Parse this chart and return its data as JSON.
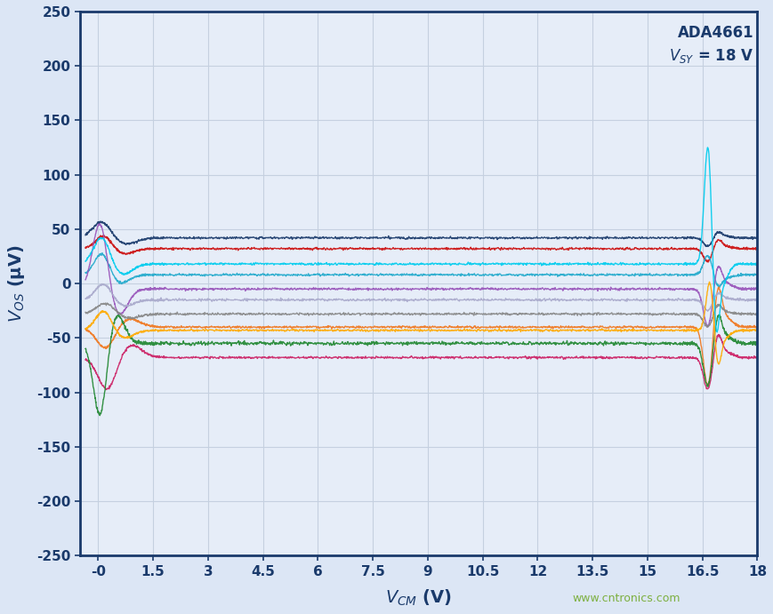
{
  "watermark": "www.cntronics.com",
  "xmin": -0.5,
  "xmax": 18.0,
  "ymin": -250,
  "ymax": 250,
  "xticks": [
    0,
    1.5,
    3,
    4.5,
    6,
    7.5,
    9,
    10.5,
    12,
    13.5,
    15,
    16.5,
    18
  ],
  "xtick_labels": [
    "-0",
    "1.5",
    "3",
    "4.5",
    "6",
    "7.5",
    "9",
    "10.5",
    "12",
    "13.5",
    "15",
    "16.5",
    "18"
  ],
  "yticks": [
    -250,
    -200,
    -150,
    -100,
    -50,
    0,
    50,
    100,
    150,
    200,
    250
  ],
  "grid_color": "#c5d0e0",
  "background_color": "#e6edf8",
  "border_color": "#1a3a6b",
  "title_color": "#1a3a6b",
  "axis_label_color": "#1a3a6b",
  "watermark_color": "#7db040",
  "line_specs": [
    {
      "color": "#1a3a6b",
      "flat": 42,
      "noise": 0.5,
      "lspike": 15,
      "lcenter": 0.1,
      "lwidth": 0.25,
      "rspike1": -8,
      "rspike2": 5,
      "rcenter": 16.65,
      "rwidth": 0.12
    },
    {
      "color": "#cc1111",
      "flat": 32,
      "noise": 0.5,
      "lspike": 12,
      "lcenter": 0.15,
      "lwidth": 0.22,
      "rspike1": -12,
      "rspike2": 8,
      "rcenter": 16.65,
      "rwidth": 0.12
    },
    {
      "color": "#22aacc",
      "flat": 8,
      "noise": 0.5,
      "lspike": 20,
      "lcenter": 0.1,
      "lwidth": 0.2,
      "rspike1": 18,
      "rspike2": -10,
      "rcenter": 16.65,
      "rwidth": 0.12
    },
    {
      "color": "#f07820",
      "flat": -40,
      "noise": 0.5,
      "lspike": -20,
      "lcenter": 0.2,
      "lwidth": 0.25,
      "rspike1": -55,
      "rspike2": 35,
      "rcenter": 16.65,
      "rwidth": 0.12
    },
    {
      "color": "#9955bb",
      "flat": -5,
      "noise": 0.5,
      "lspike": 62,
      "lcenter": 0.05,
      "lwidth": 0.2,
      "rspike1": -35,
      "rspike2": 20,
      "rcenter": 16.65,
      "rwidth": 0.12
    },
    {
      "color": "#aaaacc",
      "flat": -15,
      "noise": 0.5,
      "lspike": 15,
      "lcenter": 0.15,
      "lwidth": 0.22,
      "rspike1": -10,
      "rspike2": 6,
      "rcenter": 16.65,
      "rwidth": 0.12
    },
    {
      "color": "#888888",
      "flat": -28,
      "noise": 0.5,
      "lspike": 10,
      "lcenter": 0.2,
      "lwidth": 0.25,
      "rspike1": -12,
      "rspike2": 8,
      "rcenter": 16.65,
      "rwidth": 0.12
    },
    {
      "color": "#cc2266",
      "flat": -68,
      "noise": 0.5,
      "lspike": -30,
      "lcenter": 0.25,
      "lwidth": 0.25,
      "rspike1": -30,
      "rspike2": 20,
      "rcenter": 16.65,
      "rwidth": 0.12
    },
    {
      "color": "#228833",
      "flat": -55,
      "noise": 0.8,
      "lspike": -68,
      "lcenter": 0.05,
      "lwidth": 0.18,
      "rspike1": -40,
      "rspike2": 25,
      "rcenter": 16.65,
      "rwidth": 0.12
    },
    {
      "color": "#00ccee",
      "flat": 18,
      "noise": 0.5,
      "lspike": 25,
      "lcenter": 0.1,
      "lwidth": 0.22,
      "rspike1": 110,
      "rspike2": -60,
      "rcenter": 16.65,
      "rwidth": 0.1
    },
    {
      "color": "#ffaa00",
      "flat": -43,
      "noise": 0.5,
      "lspike": 18,
      "lcenter": 0.15,
      "lwidth": 0.22,
      "rspike1": 45,
      "rspike2": -30,
      "rcenter": 16.7,
      "rwidth": 0.1
    }
  ]
}
